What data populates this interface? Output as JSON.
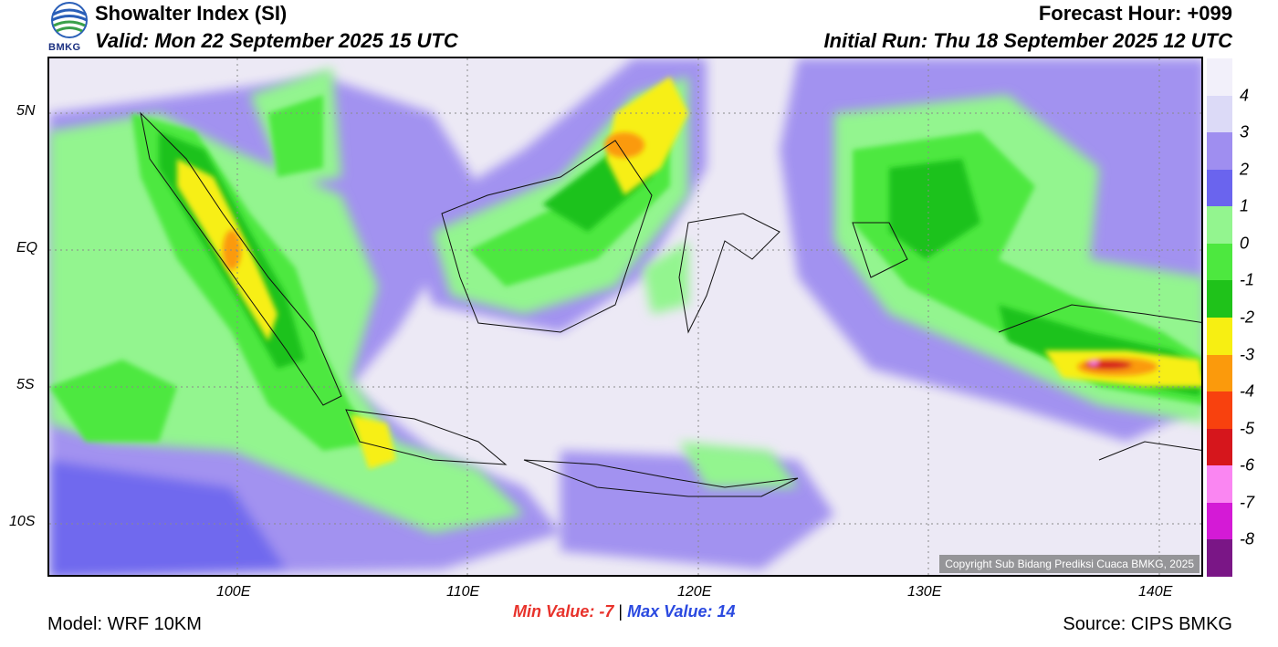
{
  "header": {
    "title": "Showalter Index (SI)",
    "valid": "Valid: Mon 22 September 2025 15 UTC",
    "forecast_hour": "Forecast Hour: +099",
    "initial_run": "Initial Run: Thu 18 September 2025 12 UTC"
  },
  "logo": {
    "text": "BMKG"
  },
  "map": {
    "lat_labels": [
      "5N",
      "EQ",
      "5S",
      "10S"
    ],
    "lon_labels": [
      "100E",
      "110E",
      "120E",
      "130E",
      "140E"
    ],
    "copyright": "Copyright Sub Bidang Prediksi Cuaca BMKG, 2025"
  },
  "colorbar": {
    "labels": [
      "4",
      "3",
      "2",
      "1",
      "0",
      "-1",
      "-2",
      "-3",
      "-4",
      "-5",
      "-6",
      "-7",
      "-8"
    ],
    "colors": [
      "#f2f0fa",
      "#dcdaf7",
      "#9f8ef0",
      "#6a64ee",
      "#93f58f",
      "#4de83f",
      "#1fc21a",
      "#f7ef12",
      "#fb9a0c",
      "#f8410e",
      "#d6161c",
      "#fa86f2",
      "#d41ad6",
      "#7a1686"
    ]
  },
  "footer": {
    "model": "Model: WRF 10KM",
    "source": "Source: CIPS BMKG",
    "min_label": "Min Value:",
    "min_value": "-7",
    "separator": "|",
    "max_label": "Max Value:",
    "max_value": "14"
  }
}
